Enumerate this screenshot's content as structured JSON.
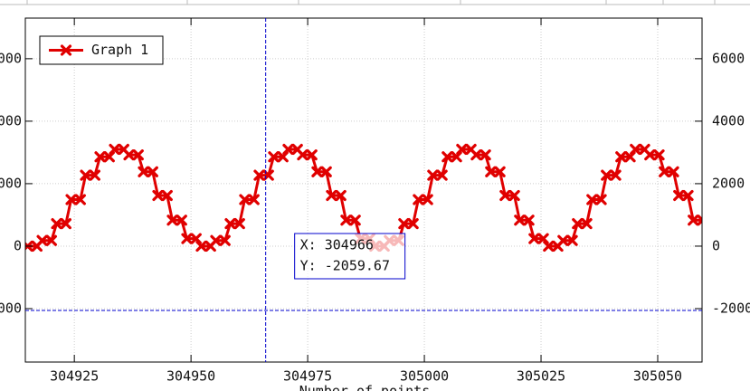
{
  "chart_data": {
    "type": "line",
    "xlabel": "Number of points",
    "x": [
      304915,
      304917,
      304918.1,
      304920.1,
      304921.2,
      304923.2,
      304924.3,
      304926.3,
      304927.4,
      304929.4,
      304930.5,
      304932.5,
      304933.6,
      304935.6,
      304936.7,
      304938.7,
      304939.8,
      304941.8,
      304942.9,
      304944.9,
      304946,
      304948,
      304949.1,
      304951.1,
      304952.2,
      304954.2,
      304955.3,
      304957.3,
      304958.4,
      304960.4,
      304961.5,
      304963.5,
      304964.6,
      304966.6,
      304967.7,
      304969.7,
      304970.8,
      304972.8,
      304973.9,
      304975.9,
      304977,
      304979,
      304980.1,
      304982.1,
      304983.2,
      304985.2,
      304986.3,
      304988.3,
      304989.4,
      304991.4,
      304992.5,
      304994.5,
      304995.6,
      304997.6,
      304998.7,
      305000.7,
      305001.8,
      305003.8,
      305004.9,
      305006.9,
      305008,
      305010,
      305011.1,
      305013.1,
      305014.2,
      305016.2,
      305017.3,
      305019.3,
      305020.4,
      305022.4,
      305023.5,
      305025.5,
      305026.6,
      305028.6,
      305029.7,
      305031.7,
      305032.8,
      305034.8,
      305035.9,
      305037.9,
      305039,
      305041,
      305042.1,
      305044.1,
      305045.2,
      305047.2,
      305048.3,
      305050.3,
      305051.4,
      305053.4,
      305054.5,
      305056.5,
      305057.6,
      305059.6
    ],
    "series": [
      {
        "name": "Graph 1",
        "color": "#e00000",
        "values": [
          0,
          0,
          180,
          180,
          720,
          720,
          1490,
          1490,
          2270,
          2270,
          2860,
          2860,
          3100,
          3100,
          2920,
          2920,
          2380,
          2380,
          1620,
          1620,
          830,
          830,
          240,
          240,
          0,
          0,
          180,
          180,
          720,
          720,
          1490,
          1490,
          2270,
          2270,
          2860,
          2860,
          3100,
          3100,
          2920,
          2920,
          2380,
          2380,
          1620,
          1620,
          830,
          830,
          240,
          240,
          0,
          0,
          180,
          180,
          720,
          720,
          1490,
          1490,
          2270,
          2270,
          2860,
          2860,
          3100,
          3100,
          2920,
          2920,
          2380,
          2380,
          1620,
          1620,
          830,
          830,
          240,
          240,
          0,
          0,
          180,
          180,
          720,
          720,
          1490,
          1490,
          2270,
          2270,
          2860,
          2860,
          3100,
          3100,
          2920,
          2920,
          2380,
          2380,
          1620,
          1620,
          830,
          830
        ]
      }
    ],
    "xlim": [
      304914.5,
      305059.5
    ],
    "xticks": [
      304925,
      304950,
      304975,
      305000,
      305025,
      305050
    ],
    "ylim": [
      -3710,
      7300
    ],
    "yticks": [
      -2000,
      0,
      2000,
      4000,
      6000
    ],
    "y2lim": [
      -3710,
      7300
    ],
    "y2ticks": [
      -2000,
      0,
      2000,
      4000,
      6000
    ],
    "grid": true,
    "legend": "upper left",
    "crosshair": {
      "x": 304966,
      "y": -2059.67,
      "color": "#0000cc",
      "labels": [
        "X: 304966",
        "Y: -2059.67"
      ]
    }
  }
}
